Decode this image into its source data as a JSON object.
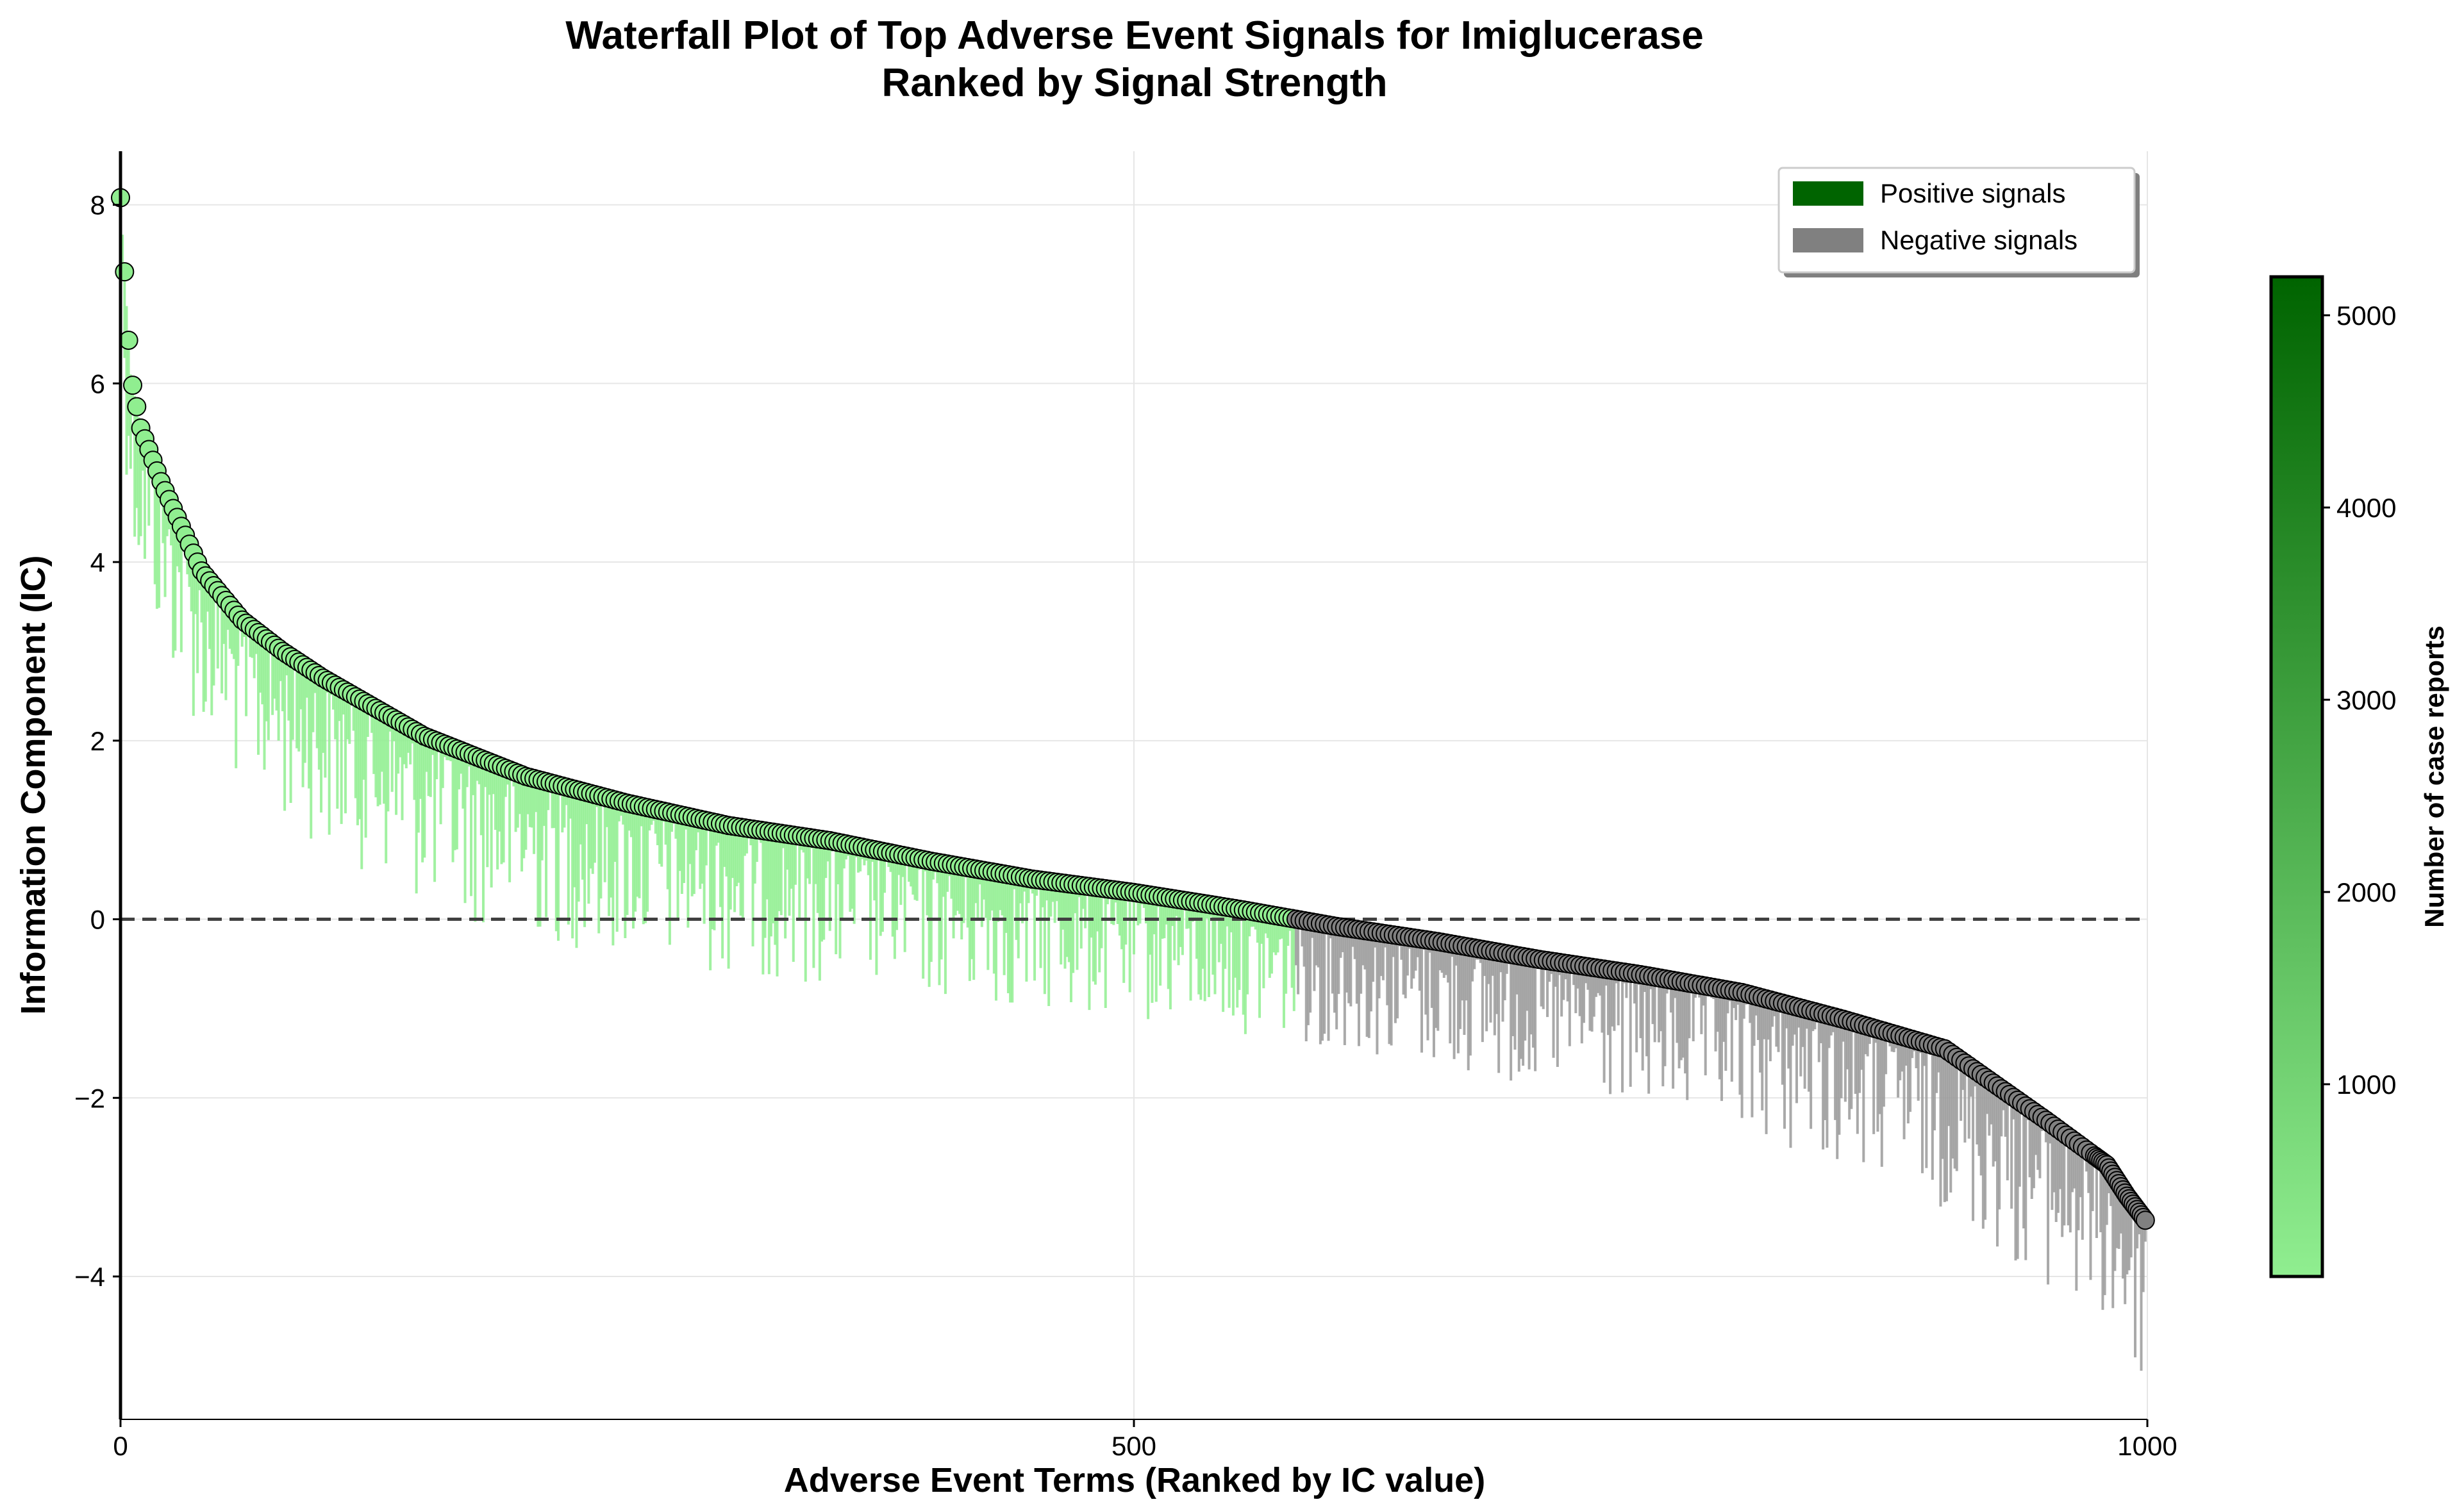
{
  "chart_data": {
    "type": "waterfall",
    "title": "Waterfall Plot of Top Adverse Event Signals for Imiglucerase",
    "subtitle": "Ranked by Signal Strength",
    "xlabel": "Adverse Event Terms (Ranked by IC value)",
    "ylabel": "Information Component (IC)",
    "xlim": [
      0,
      1000
    ],
    "ylim": [
      -5.6,
      8.6
    ],
    "xticks": [
      0,
      500,
      1000
    ],
    "yticks": [
      -4,
      -2,
      0,
      2,
      4,
      6,
      8
    ],
    "grid": true,
    "reference_line": {
      "y": 0,
      "style": "dashed"
    },
    "n_terms": 1000,
    "ic_profile": {
      "rank": [
        0,
        2,
        5,
        10,
        20,
        30,
        40,
        60,
        80,
        100,
        150,
        200,
        250,
        300,
        350,
        400,
        450,
        500,
        550,
        600,
        650,
        700,
        750,
        800,
        850,
        900,
        950,
        980,
        990,
        1000
      ],
      "ic": [
        8.08,
        7.25,
        6.1,
        5.5,
        4.9,
        4.4,
        3.9,
        3.35,
        3.0,
        2.7,
        2.05,
        1.6,
        1.3,
        1.05,
        0.88,
        0.65,
        0.45,
        0.3,
        0.12,
        -0.08,
        -0.25,
        -0.45,
        -0.62,
        -0.82,
        -1.12,
        -1.45,
        -2.25,
        -2.75,
        -3.1,
        -3.4
      ]
    },
    "lower_bound_offset_range": [
      0.1,
      1.9
    ],
    "legend": {
      "placement": "top-right",
      "entries": [
        {
          "label": "Positive signals",
          "color": "#006400"
        },
        {
          "label": "Negative signals",
          "color": "#808080"
        }
      ]
    },
    "colors": {
      "positive_bar": "#90ee90",
      "negative_bar": "#9a9a9a",
      "marker_negative": "#808080",
      "marker_edge": "#000000",
      "reference_line": "#404040"
    },
    "colorbar": {
      "label": "Number of case reports",
      "range": [
        0,
        5200
      ],
      "ticks": [
        1000,
        2000,
        3000,
        4000,
        5000
      ],
      "cmap": [
        "#90ee90",
        "#006400"
      ]
    }
  }
}
